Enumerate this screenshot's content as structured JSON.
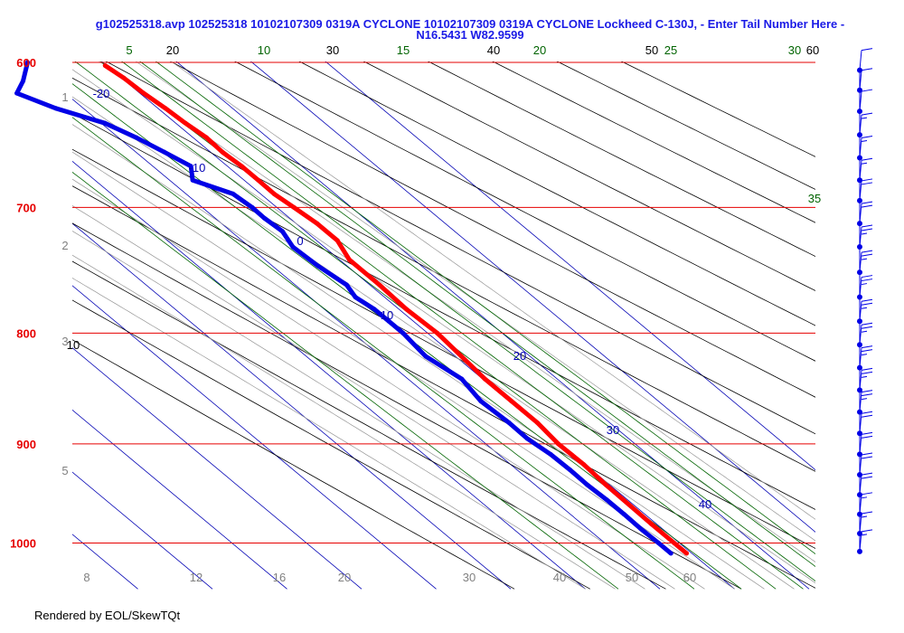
{
  "title": {
    "line1": "g102525318.avp 102525318 10102107309 0319A CYCLONE 10102107309 0319A CYCLONE Lockheed C-130J, - Enter Tail Number Here -",
    "line2": "N16.5431 W82.9599"
  },
  "footer": "Rendered by EOL/SkewTQt",
  "colors": {
    "isobar": "#e60000",
    "isotherm": "#0000b4",
    "dry_adiabat": "#000000",
    "moist_adiabat": "#969696",
    "mixing_ratio": "#006400",
    "temperature": "#ff0000",
    "dewpoint": "#0000e6",
    "wind": "#0000e6",
    "height_label": "#808080"
  },
  "chart_data": {
    "type": "skew-t",
    "pressure_axis": {
      "labels": [
        "600",
        "700",
        "800",
        "900",
        "1000"
      ],
      "values": [
        600,
        700,
        800,
        900,
        1000
      ],
      "ylim": [
        1050,
        600
      ]
    },
    "isotherms": [
      {
        "label": "-20",
        "t": -20
      },
      {
        "label": "-10",
        "t": -10
      },
      {
        "label": "0",
        "t": 0
      },
      {
        "label": "10",
        "t": 10
      },
      {
        "label": "20",
        "t": 20
      },
      {
        "label": "30",
        "t": 30
      },
      {
        "label": "40",
        "t": 40
      }
    ],
    "bottom_temperature_labels": [
      "8",
      "12",
      "16",
      "20",
      "30",
      "40",
      "50",
      "60"
    ],
    "height_labels_km": [
      "1",
      "2",
      "3",
      "5"
    ],
    "dry_adiabat_labels": [
      "20",
      "30",
      "40",
      "50",
      "60",
      "10"
    ],
    "mixing_ratio_labels": [
      "5",
      "10",
      "15",
      "20",
      "25",
      "30",
      "35"
    ],
    "temperature_profile": {
      "name": "Temperature",
      "p": [
        1011,
        1000,
        980,
        960,
        940,
        920,
        900,
        880,
        860,
        840,
        820,
        800,
        780,
        760,
        740,
        725,
        712,
        700,
        690,
        680,
        670,
        660,
        650,
        640,
        630,
        620,
        610,
        602
      ],
      "t": [
        19.3,
        19.3,
        19.3,
        19.4,
        19.5,
        19.8,
        19.7,
        20.3,
        20.3,
        20.3,
        20.8,
        21.3,
        21.0,
        21.3,
        21.3,
        22.8,
        22.8,
        22.3,
        21.8,
        21.9,
        21.9,
        21.6,
        21.8,
        21.3,
        21.0,
        20.5,
        20.3,
        19.8
      ]
    },
    "dewpoint_profile": {
      "name": "Dewpoint",
      "p": [
        1011,
        1000,
        985,
        970,
        955,
        940,
        925,
        910,
        895,
        880,
        860,
        840,
        820,
        800,
        790,
        780,
        770,
        760,
        745,
        730,
        718,
        708,
        700,
        690,
        680,
        670,
        660,
        650,
        640,
        630,
        620,
        612,
        600
      ],
      "t": [
        17.2,
        17.2,
        17.1,
        17.2,
        17.2,
        17.0,
        17.1,
        17.0,
        16.4,
        16.5,
        16.2,
        17.2,
        16.0,
        16.7,
        16.7,
        16.7,
        16.1,
        16.9,
        16.1,
        15.8,
        16.9,
        16.6,
        16.7,
        16.3,
        13.1,
        15.1,
        13.8,
        12.4,
        10.5,
        6.3,
        3.5,
        6.3,
        9.9
      ]
    },
    "wind_profile": {
      "name": "Wind",
      "p": [
        1009,
        990,
        970,
        950,
        930,
        910,
        890,
        870,
        850,
        830,
        810,
        790,
        770,
        750,
        730,
        712,
        695,
        680,
        664,
        648,
        632,
        618,
        605
      ],
      "speed_kt": [
        15,
        15,
        15,
        20,
        20,
        20,
        20,
        25,
        25,
        25,
        25,
        25,
        25,
        25,
        25,
        20,
        20,
        15,
        15,
        15,
        10,
        10,
        10
      ]
    }
  }
}
